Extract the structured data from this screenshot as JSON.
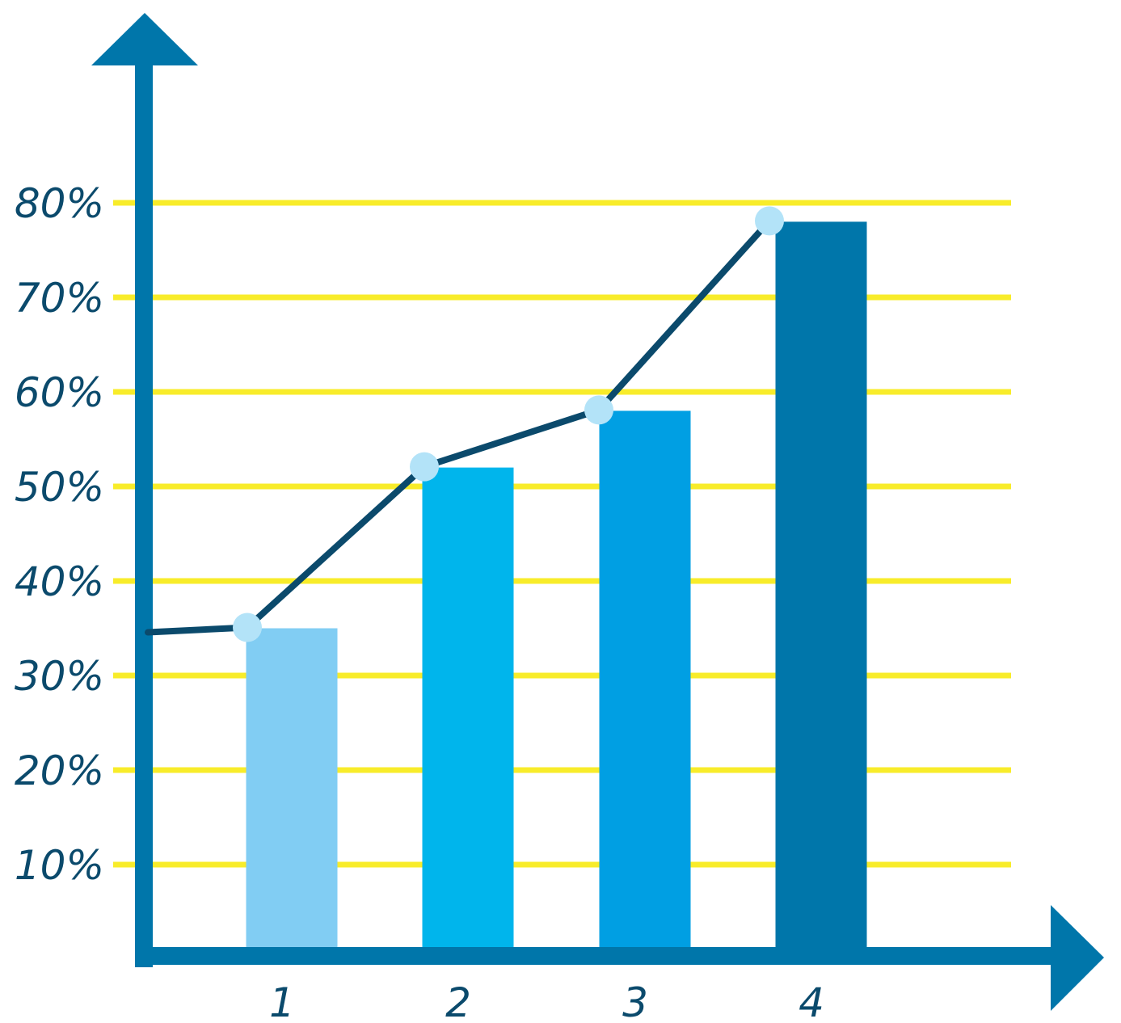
{
  "chart_data": {
    "type": "bar",
    "title": "",
    "xlabel": "",
    "ylabel": "",
    "categories": [
      "1",
      "2",
      "3",
      "4"
    ],
    "values": [
      35,
      52,
      58,
      78
    ],
    "line_overlay": {
      "start_value": 35,
      "values": [
        35,
        52,
        58,
        78
      ]
    },
    "y_ticks": [
      "10%",
      "20%",
      "30%",
      "40%",
      "50%",
      "60%",
      "70%",
      "80%"
    ],
    "y_tick_values": [
      10,
      20,
      30,
      40,
      50,
      60,
      70,
      80
    ],
    "ylim": [
      0,
      80
    ],
    "grid": true,
    "legend": "none"
  },
  "colors": {
    "axis": "#0076AA",
    "grid": "#F8EC2A",
    "bars": [
      "#81CDF3",
      "#00B5EC",
      "#009FE3",
      "#0076AA"
    ],
    "line": "#0B4A6C",
    "marker": "#B3E3F8",
    "tick_text": "#0B4A6C"
  }
}
